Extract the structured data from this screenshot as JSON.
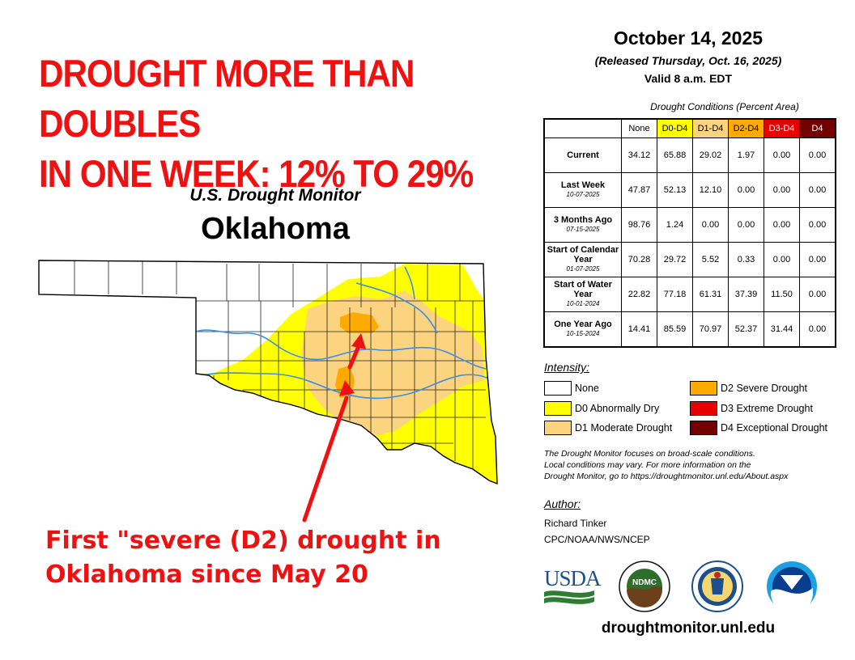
{
  "headline": {
    "line1": "DROUGHT MORE THAN DOUBLES",
    "line2": "IN ONE WEEK: 12% TO 29%"
  },
  "map": {
    "title": "U.S. Drought Monitor",
    "state": "Oklahoma"
  },
  "annotation": {
    "line1": "First \"severe (D2) drought in",
    "line2": "Oklahoma since May 20"
  },
  "report": {
    "date": "October 14, 2025",
    "released": "(Released Thursday, Oct. 16, 2025)",
    "valid": "Valid 8 a.m. EDT"
  },
  "conditions": {
    "caption": "Drought Conditions (Percent Area)",
    "columns": [
      "None",
      "D0-D4",
      "D1-D4",
      "D2-D4",
      "D3-D4",
      "D4"
    ],
    "column_colors": [
      "#ffffff",
      "#ffff00",
      "#fcd37f",
      "#ffaa00",
      "#e60000",
      "#730000"
    ],
    "column_text_colors": [
      "#000000",
      "#000000",
      "#000000",
      "#000000",
      "#ffffff",
      "#ffffff"
    ],
    "rows": [
      {
        "label": "Current",
        "date": "",
        "values": [
          "34.12",
          "65.88",
          "29.02",
          "1.97",
          "0.00",
          "0.00"
        ]
      },
      {
        "label": "Last Week",
        "date": "10-07-2025",
        "values": [
          "47.87",
          "52.13",
          "12.10",
          "0.00",
          "0.00",
          "0.00"
        ]
      },
      {
        "label": "3 Months Ago",
        "date": "07-15-2025",
        "values": [
          "98.76",
          "1.24",
          "0.00",
          "0.00",
          "0.00",
          "0.00"
        ]
      },
      {
        "label": "Start of Calendar Year",
        "date": "01-07-2025",
        "values": [
          "70.28",
          "29.72",
          "5.52",
          "0.33",
          "0.00",
          "0.00"
        ]
      },
      {
        "label": "Start of Water Year",
        "date": "10-01-2024",
        "values": [
          "22.82",
          "77.18",
          "61.31",
          "37.39",
          "11.50",
          "0.00"
        ]
      },
      {
        "label": "One Year Ago",
        "date": "10-15-2024",
        "values": [
          "14.41",
          "85.59",
          "70.97",
          "52.37",
          "31.44",
          "0.00"
        ]
      }
    ]
  },
  "legend": {
    "title": "Intensity:",
    "items": [
      {
        "label": "None",
        "color": "#ffffff"
      },
      {
        "label": "D0 Abnormally Dry",
        "color": "#ffff00"
      },
      {
        "label": "D1 Moderate Drought",
        "color": "#fcd37f"
      },
      {
        "label": "D2 Severe Drought",
        "color": "#ffaa00"
      },
      {
        "label": "D3 Extreme Drought",
        "color": "#e60000"
      },
      {
        "label": "D4 Exceptional Drought",
        "color": "#730000"
      }
    ]
  },
  "note": {
    "line1": "The Drought Monitor focuses on broad-scale conditions.",
    "line2": "Local conditions may vary. For more information on the",
    "line3": "Drought Monitor, go to https://droughtmonitor.unl.edu/About.aspx"
  },
  "author": {
    "title": "Author:",
    "name": "Richard Tinker",
    "org": "CPC/NOAA/NWS/NCEP"
  },
  "logos": {
    "usda": "USDA",
    "ndmc": "NDMC"
  },
  "footer": {
    "url": "droughtmonitor.unl.edu"
  },
  "colors": {
    "headline": "#ee1111",
    "river": "#3a8fe6",
    "arrow": "#ee1111"
  }
}
